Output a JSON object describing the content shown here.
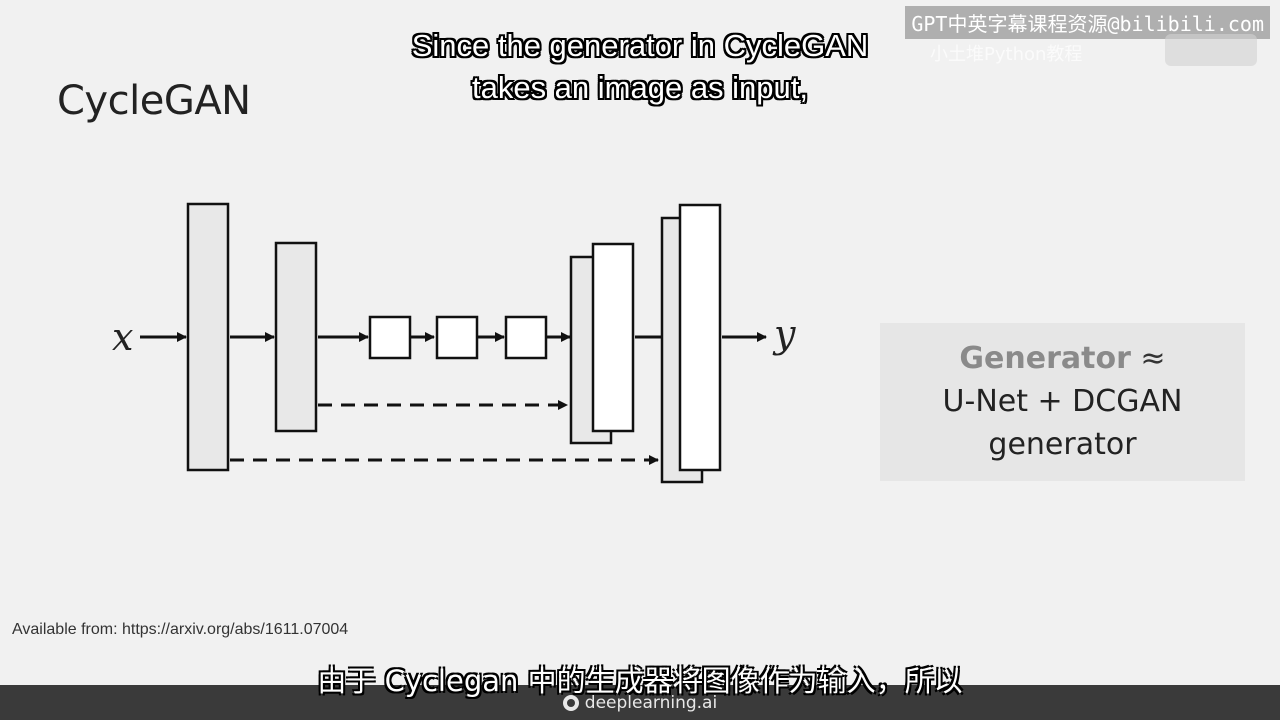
{
  "slide": {
    "title": "CycleGAN",
    "input_label": "x",
    "output_label": "y",
    "generator_box": {
      "line1_highlight": "Generator",
      "line1_rest": " ≈",
      "line2": "U-Net + DCGAN",
      "line3": "generator"
    },
    "citation": "Available from: https://arxiv.org/abs/1611.07004"
  },
  "subtitles": {
    "english_line1": "Since the generator in CycleGAN",
    "english_line2": "takes an image as input,",
    "chinese": "由于 Cyclegan 中的生成器将图像作为输入，所以"
  },
  "overlay": {
    "watermark": "GPT中英字幕课程资源@bilibili.com",
    "watermark2": "小土堆Python教程"
  },
  "footer": {
    "brand": "deeplearning.ai",
    "brand_icon": "deeplearning-logo-icon"
  },
  "colors": {
    "block_fill_shaded": "#e8e8e8",
    "block_fill_white": "#ffffff",
    "stroke": "#111111",
    "generator_box_bg": "#e6e6e6",
    "footer_bg": "#3a3a3a"
  }
}
